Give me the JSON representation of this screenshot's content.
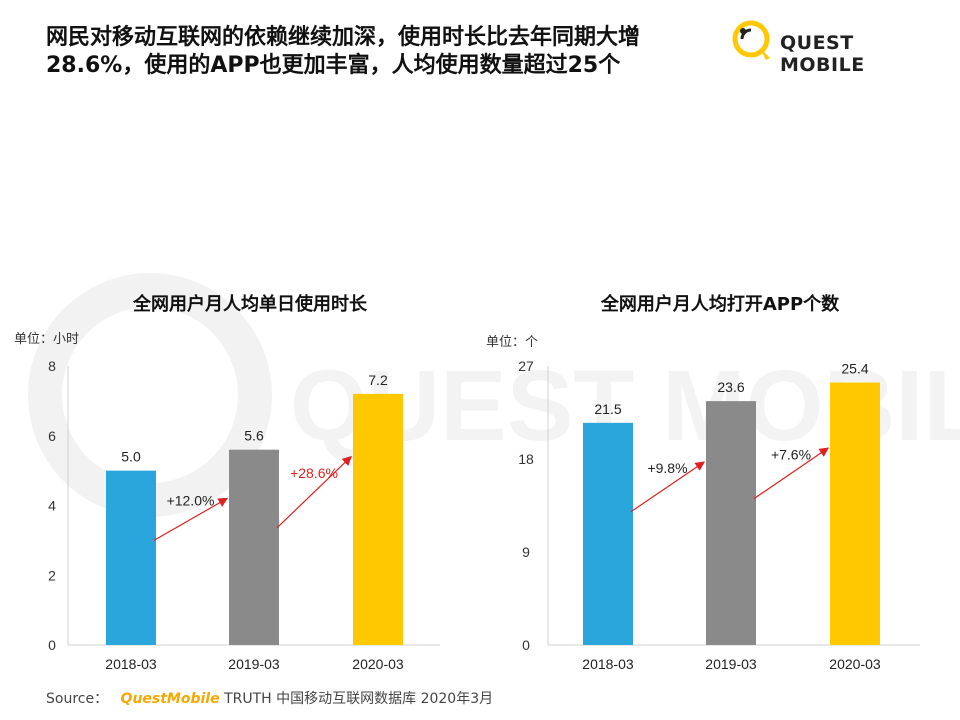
{
  "header": {
    "title": "网民对移动互联网的依赖继续加深，使用时长比去年同期大增28.6%，使用的APP也更加丰富，人均使用数量超过25个"
  },
  "logo": {
    "text": "QUEST MOBILE",
    "watermark": "QUEST MOBILE"
  },
  "footer": {
    "source_label": "Source：",
    "source_brand": "QuestMobile",
    "source_text": "TRUTH 中国移动互联网数据库 2020年3月"
  },
  "colors": {
    "blue": "#2aa6dc",
    "gray": "#8a8a8a",
    "yellow": "#ffc800",
    "arrow": "#e02020",
    "accent": "#f5a800"
  },
  "chart_data": [
    {
      "type": "bar",
      "title": "全网用户月人均单日使用时长",
      "unit_label": "单位：小时",
      "categories": [
        "2018-03",
        "2019-03",
        "2020-03"
      ],
      "values": [
        5.0,
        5.6,
        7.2
      ],
      "value_labels": [
        "5.0",
        "5.6",
        "7.2"
      ],
      "bar_colors": [
        "#2aa6dc",
        "#8a8a8a",
        "#ffc800"
      ],
      "yticks": [
        0,
        2,
        4,
        6,
        8
      ],
      "ylim": [
        0,
        8
      ],
      "growth": [
        {
          "label": "+12.0%",
          "color": "#222222"
        },
        {
          "label": "+28.6%",
          "color": "#e02020"
        }
      ]
    },
    {
      "type": "bar",
      "title": "全网用户月人均打开APP个数",
      "unit_label": "单位：个",
      "categories": [
        "2018-03",
        "2019-03",
        "2020-03"
      ],
      "values": [
        21.5,
        23.6,
        25.4
      ],
      "value_labels": [
        "21.5",
        "23.6",
        "25.4"
      ],
      "bar_colors": [
        "#2aa6dc",
        "#8a8a8a",
        "#ffc800"
      ],
      "yticks": [
        0,
        9,
        18,
        27
      ],
      "ylim": [
        0,
        27
      ],
      "growth": [
        {
          "label": "+9.8%",
          "color": "#222222"
        },
        {
          "label": "+7.6%",
          "color": "#222222"
        }
      ]
    }
  ]
}
